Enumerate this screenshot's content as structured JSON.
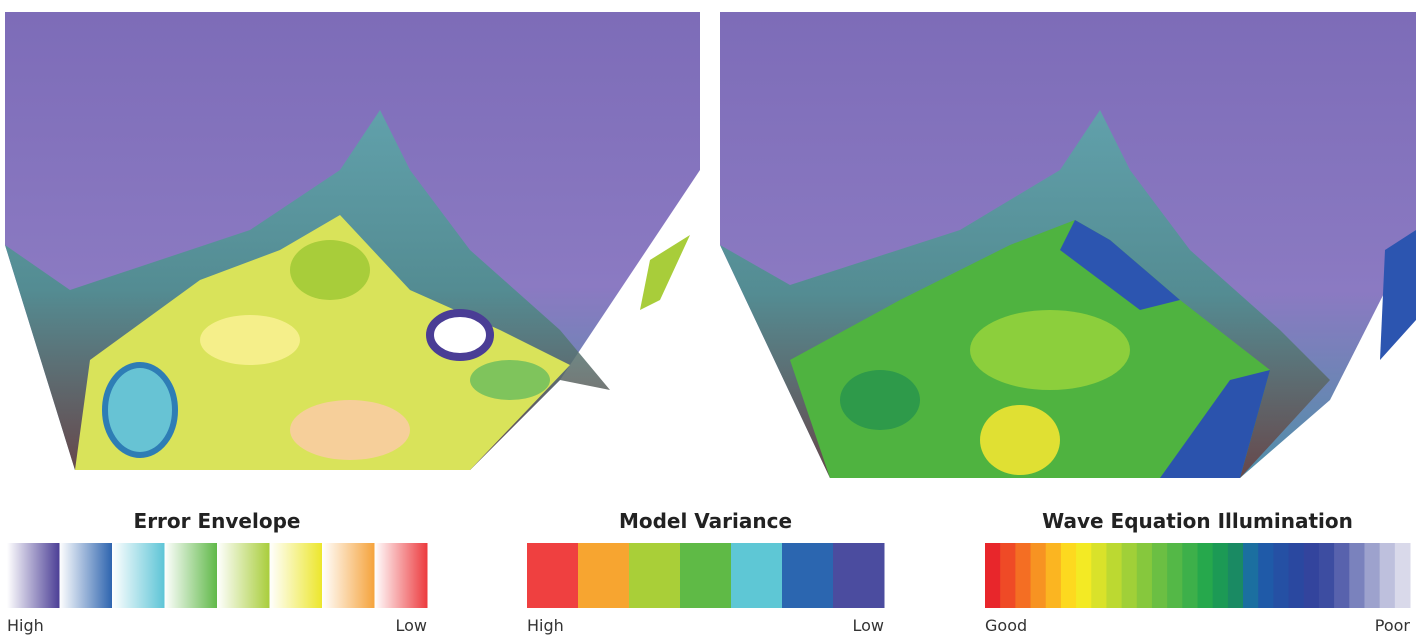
{
  "legends": [
    {
      "title": "Error Envelope",
      "left_label": "High",
      "right_label": "Low",
      "style": "gradient",
      "colors": [
        "#4a3d95",
        "#2c63ae",
        "#5cc4d6",
        "#5fb847",
        "#a8cd3a",
        "#ece62a",
        "#f5a23a",
        "#ec3a3e"
      ]
    },
    {
      "title": "Model Variance",
      "left_label": "High",
      "right_label": "Low",
      "style": "solid",
      "colors": [
        "#ef4040",
        "#f7a530",
        "#a9cf38",
        "#5fba46",
        "#5ec7d5",
        "#2b66b0",
        "#4b4c9f"
      ]
    },
    {
      "title": "Wave Equation Illumination",
      "left_label": "Good",
      "right_label": "Poor",
      "style": "solid",
      "colors": [
        "#e8262b",
        "#ef4a26",
        "#f46e23",
        "#f79322",
        "#fbb521",
        "#fdd91f",
        "#f3ea24",
        "#d9e22a",
        "#bcd931",
        "#a0d038",
        "#86c83d",
        "#6bbf43",
        "#54b847",
        "#3db04a",
        "#26a84c",
        "#1c9a55",
        "#1a8a63",
        "#1b6fa0",
        "#1f5aa8",
        "#2550a4",
        "#2a48a0",
        "#33449d",
        "#3d4da1",
        "#5862ad",
        "#7a82bd",
        "#9da2cd",
        "#bec0dd",
        "#d9d9ea"
      ]
    }
  ]
}
